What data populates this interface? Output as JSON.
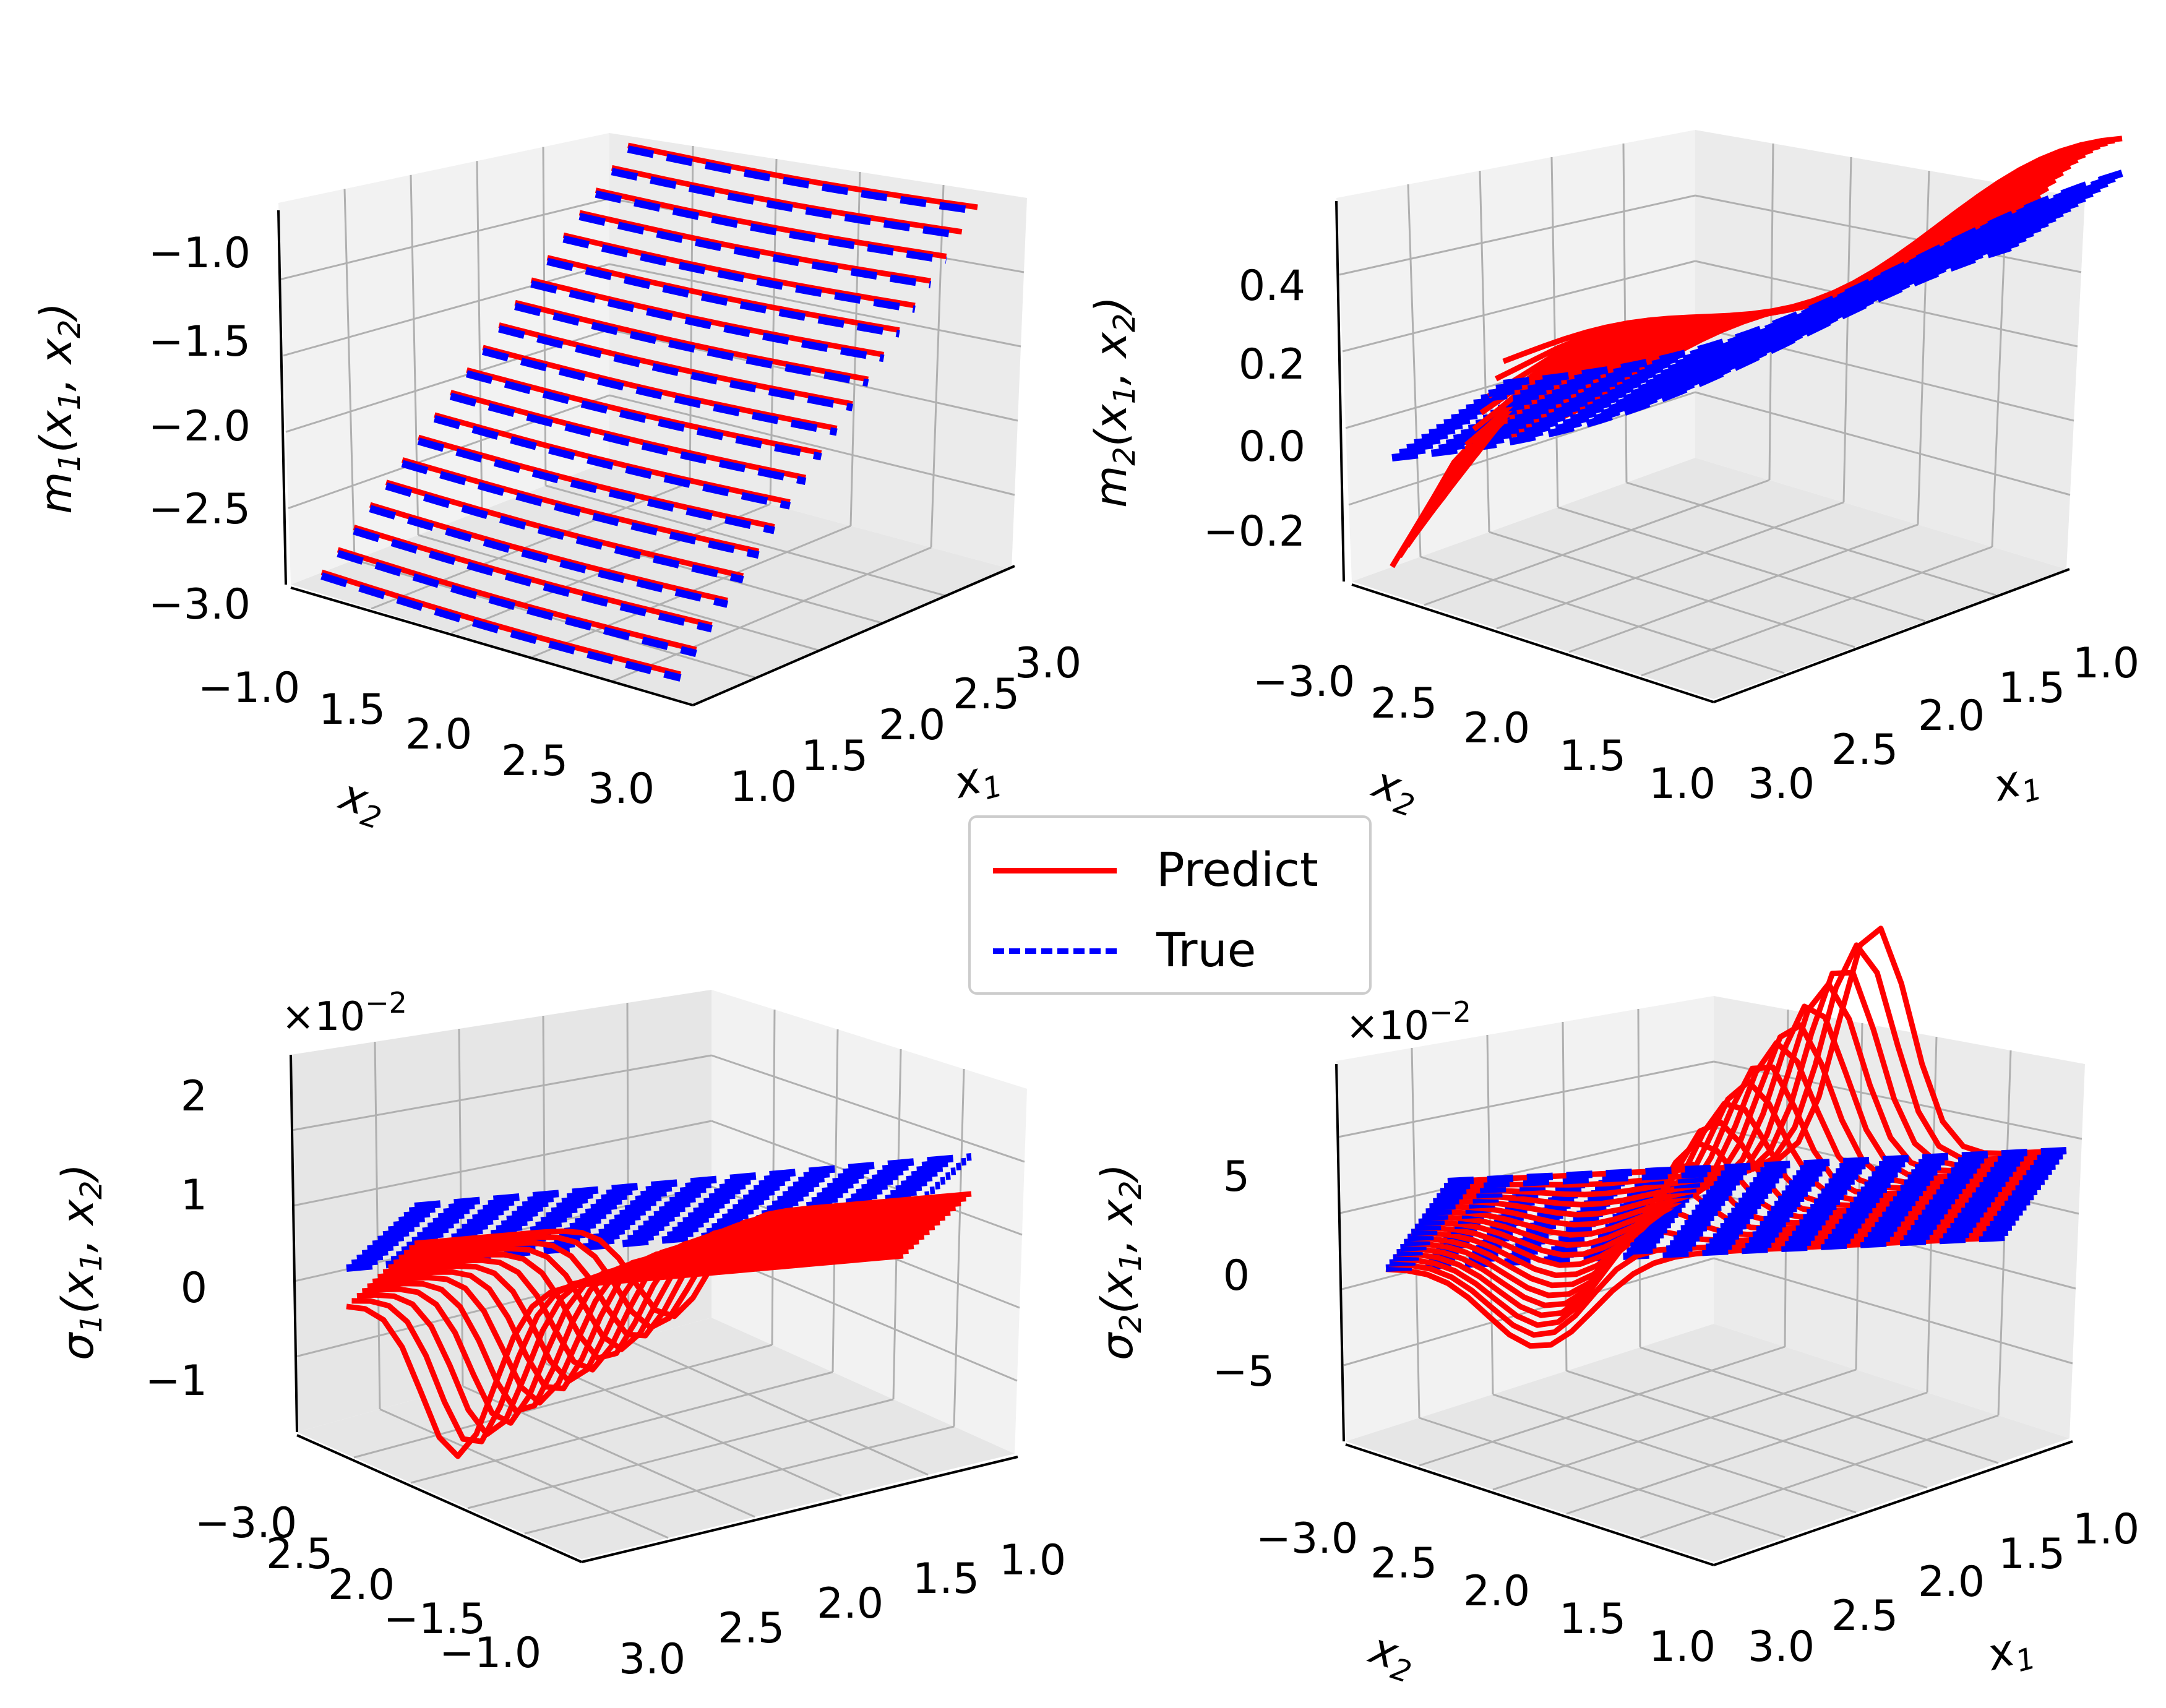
{
  "legend": {
    "items": [
      {
        "label": "Predict",
        "color": "#ff0000",
        "style": "solid"
      },
      {
        "label": "True",
        "color": "#0000ff",
        "style": "dashed"
      }
    ]
  },
  "chart_data": [
    {
      "type": "line3d",
      "zlabel_base": "m",
      "zlabel_sub": "1",
      "zlabel_rest": "(x",
      "xlabel": "x",
      "xlabel_sub": "1",
      "ylabel": "x",
      "ylabel_sub": "2",
      "x1_ticks": [
        "1.0",
        "1.5",
        "2.0",
        "2.5",
        "3.0"
      ],
      "x2_ticks": [
        "−1.0",
        "1.5",
        "2.0",
        "2.5",
        "3.0"
      ],
      "z_ticks": [
        "−1.0",
        "−1.5",
        "−2.0",
        "−2.5",
        "−3.0"
      ],
      "multiplier": "",
      "zlim": [
        -3.0,
        -1.0
      ],
      "series": [
        {
          "name": "Predict",
          "color": "#ff0000",
          "style": "solid"
        },
        {
          "name": "True",
          "color": "#0000ff",
          "style": "dashed"
        }
      ]
    },
    {
      "type": "line3d",
      "zlabel_base": "m",
      "zlabel_sub": "2",
      "xlabel": "x",
      "xlabel_sub": "1",
      "ylabel": "x",
      "ylabel_sub": "2",
      "x1_ticks": [
        "3.0",
        "2.5",
        "2.0",
        "1.5",
        "1.0"
      ],
      "x2_ticks": [
        "−3.0",
        "2.5",
        "2.0",
        "1.5",
        "1.0"
      ],
      "z_ticks": [
        "0.4",
        "0.2",
        "0.0",
        "−0.2"
      ],
      "multiplier": "",
      "zlim": [
        -0.3,
        0.5
      ]
    },
    {
      "type": "line3d",
      "zlabel_base": "σ",
      "zlabel_sub": "1",
      "xlabel": "",
      "ylabel": "",
      "x1_ticks": [
        "3.0",
        "2.5",
        "2.0",
        "1.5",
        "1.0"
      ],
      "x2_ticks": [
        "−3.0",
        "2.5",
        "2.0",
        "−1.5",
        "−1.0"
      ],
      "z_ticks": [
        "2",
        "1",
        "0",
        "−1"
      ],
      "multiplier": "×10",
      "multiplier_exp": "−2",
      "zlim": [
        -1.5,
        2.5
      ]
    },
    {
      "type": "line3d",
      "zlabel_base": "σ",
      "zlabel_sub": "2",
      "xlabel": "x",
      "xlabel_sub": "1",
      "ylabel": "x",
      "ylabel_sub": "2",
      "x1_ticks": [
        "3.0",
        "2.5",
        "2.0",
        "1.5",
        "1.0"
      ],
      "x2_ticks": [
        "−3.0",
        "2.5",
        "2.0",
        "1.5",
        "1.0"
      ],
      "z_ticks": [
        "5",
        "0",
        "−5"
      ],
      "multiplier": "×10",
      "multiplier_exp": "−2",
      "zlim": [
        -8,
        9
      ]
    }
  ]
}
